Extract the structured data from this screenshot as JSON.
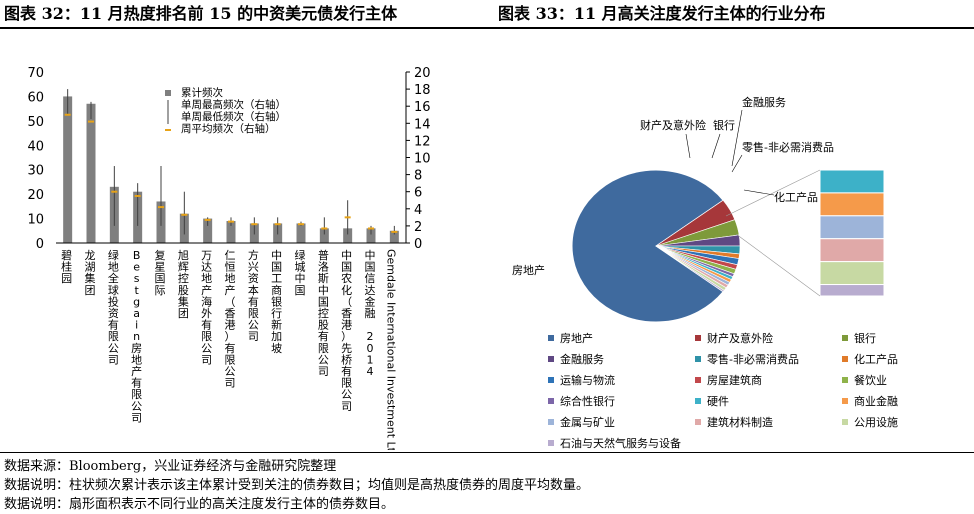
{
  "header": {
    "left_title": "图表 32：11 月热度排名前 15 的中资美元债发行主体",
    "right_title": "图表 33：11 月高关注度发行主体的行业分布"
  },
  "chart_data": [
    {
      "type": "bar",
      "categories": [
        "碧桂园",
        "龙湖集团",
        "绿地全球投资有限公司",
        "Bestgain房地产有限公司",
        "复星国际",
        "旭辉控股集团",
        "万达地产海外有限公司",
        "仁恒地产（香港）有限公司",
        "方兴资本有限公司",
        "中国工商银行新加坡",
        "绿城中国",
        "普洛斯中国控股有限公司",
        "中国农化（香港）先桥有限公司",
        "中国信达金融 2014",
        "Gemdale International Investment Ltd"
      ],
      "left_axis": {
        "ylim": [
          0,
          70
        ],
        "ticks": [
          0,
          10,
          20,
          30,
          40,
          50,
          60,
          70
        ]
      },
      "right_axis": {
        "ylim": [
          0,
          20
        ],
        "ticks": [
          0,
          2,
          4,
          6,
          8,
          10,
          12,
          14,
          16,
          18,
          20
        ]
      },
      "legend_position": "top-right",
      "series": [
        {
          "name": "累计频次",
          "axis": "left",
          "kind": "bar",
          "values": [
            60,
            57,
            23,
            21,
            17,
            12,
            10,
            9,
            8,
            8,
            8,
            6,
            6,
            6,
            5
          ]
        },
        {
          "name": "单周最高频次（右轴）",
          "axis": "right",
          "kind": "range-high",
          "values": [
            18,
            16.5,
            9,
            7,
            9,
            6,
            3,
            3,
            3,
            3,
            2.5,
            3,
            5,
            2,
            2
          ]
        },
        {
          "name": "单周最低频次（右轴）",
          "axis": "right",
          "kind": "range-low",
          "values": [
            15,
            14.5,
            2,
            2,
            2,
            1,
            2,
            2,
            1,
            1,
            2,
            1,
            1,
            1,
            1
          ]
        },
        {
          "name": "周平均频次（右轴）",
          "axis": "right",
          "kind": "marker",
          "values": [
            15,
            14.2,
            6,
            5.5,
            4.2,
            3.3,
            2.7,
            2.5,
            2.2,
            2.2,
            2.2,
            1.7,
            3,
            1.7,
            1.3
          ]
        }
      ]
    },
    {
      "type": "pie",
      "legend_position": "bottom",
      "slices": [
        {
          "label": "房地产",
          "value": 240,
          "color": "#3F6A9E"
        },
        {
          "label": "财产及意外险",
          "value": 14,
          "color": "#A6373A"
        },
        {
          "label": "银行",
          "value": 10,
          "color": "#7E9A3A"
        },
        {
          "label": "金融服务",
          "value": 7,
          "color": "#5F4883"
        },
        {
          "label": "零售-非必需消费品",
          "value": 5,
          "color": "#2F92A8"
        },
        {
          "label": "化工产品",
          "value": 3,
          "color": "#E07B2A"
        },
        {
          "label": "运输与物流",
          "value": 4,
          "color": "#2E73B7"
        },
        {
          "label": "房屋建筑商",
          "value": 3,
          "color": "#C2484B"
        },
        {
          "label": "餐饮业",
          "value": 3,
          "color": "#8FB34A"
        },
        {
          "label": "综合性银行",
          "value": 2,
          "color": "#7C66A8"
        },
        {
          "label": "硬件",
          "value": 2,
          "color": "#3DB1C8"
        },
        {
          "label": "商业金融",
          "value": 2,
          "color": "#F59A4A"
        },
        {
          "label": "金属与矿业",
          "value": 2,
          "color": "#9DB4D9"
        },
        {
          "label": "建筑材料制造",
          "value": 2,
          "color": "#E0A9A8"
        },
        {
          "label": "公用设施",
          "value": 2,
          "color": "#C7D9A3"
        },
        {
          "label": "石油与天然气服务与设备",
          "value": 1,
          "color": "#B8ACCF"
        }
      ],
      "annotations": [
        "房地产",
        "财产及意外险",
        "银行",
        "金融服务",
        "零售-非必需消费品",
        "化工产品"
      ]
    }
  ],
  "notes": {
    "source": "数据来源：Bloomberg，兴业证券经济与金融研究院整理",
    "explain1": "数据说明：柱状频次累计表示该主体累计受到关注的债券数目；均值则是高热度债券的周度平均数量。",
    "explain2": "数据说明：扇形面积表示不同行业的高关注度发行主体的债券数目。"
  }
}
